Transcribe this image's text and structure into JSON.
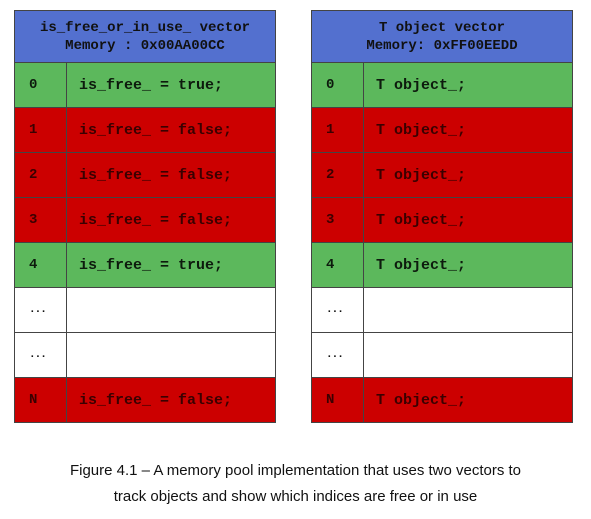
{
  "left_table": {
    "header_line1": "is_free_or_in_use_ vector",
    "header_line2": "Memory : 0x00AA00CC",
    "rows": [
      {
        "index": "0",
        "value": "is_free_ = true;",
        "state": "green"
      },
      {
        "index": "1",
        "value": "is_free_ = false;",
        "state": "red"
      },
      {
        "index": "2",
        "value": "is_free_ = false;",
        "state": "red"
      },
      {
        "index": "3",
        "value": "is_free_ = false;",
        "state": "red"
      },
      {
        "index": "4",
        "value": "is_free_ = true;",
        "state": "green"
      },
      {
        "index": "...",
        "value": "",
        "state": "white"
      },
      {
        "index": "...",
        "value": "",
        "state": "white"
      },
      {
        "index": "N",
        "value": "is_free_ = false;",
        "state": "red"
      }
    ]
  },
  "right_table": {
    "header_line1": "T object vector",
    "header_line2": "Memory: 0xFF00EEDD",
    "rows": [
      {
        "index": "0",
        "value": "T object_;",
        "state": "green"
      },
      {
        "index": "1",
        "value": "T object_;",
        "state": "red"
      },
      {
        "index": "2",
        "value": "T object_;",
        "state": "red"
      },
      {
        "index": "3",
        "value": "T object_;",
        "state": "red"
      },
      {
        "index": "4",
        "value": "T object_;",
        "state": "green"
      },
      {
        "index": "...",
        "value": "",
        "state": "white"
      },
      {
        "index": "...",
        "value": "",
        "state": "white"
      },
      {
        "index": "N",
        "value": "T object_;",
        "state": "red"
      }
    ]
  },
  "colors": {
    "header": "#5370cf",
    "free": "#5cb85c",
    "in_use": "#cc0000",
    "empty": "#ffffff"
  },
  "caption": {
    "line1": "Figure 4.1 – A memory pool implementation that uses two vectors to",
    "line2": "track objects and show which indices are free or in use"
  }
}
